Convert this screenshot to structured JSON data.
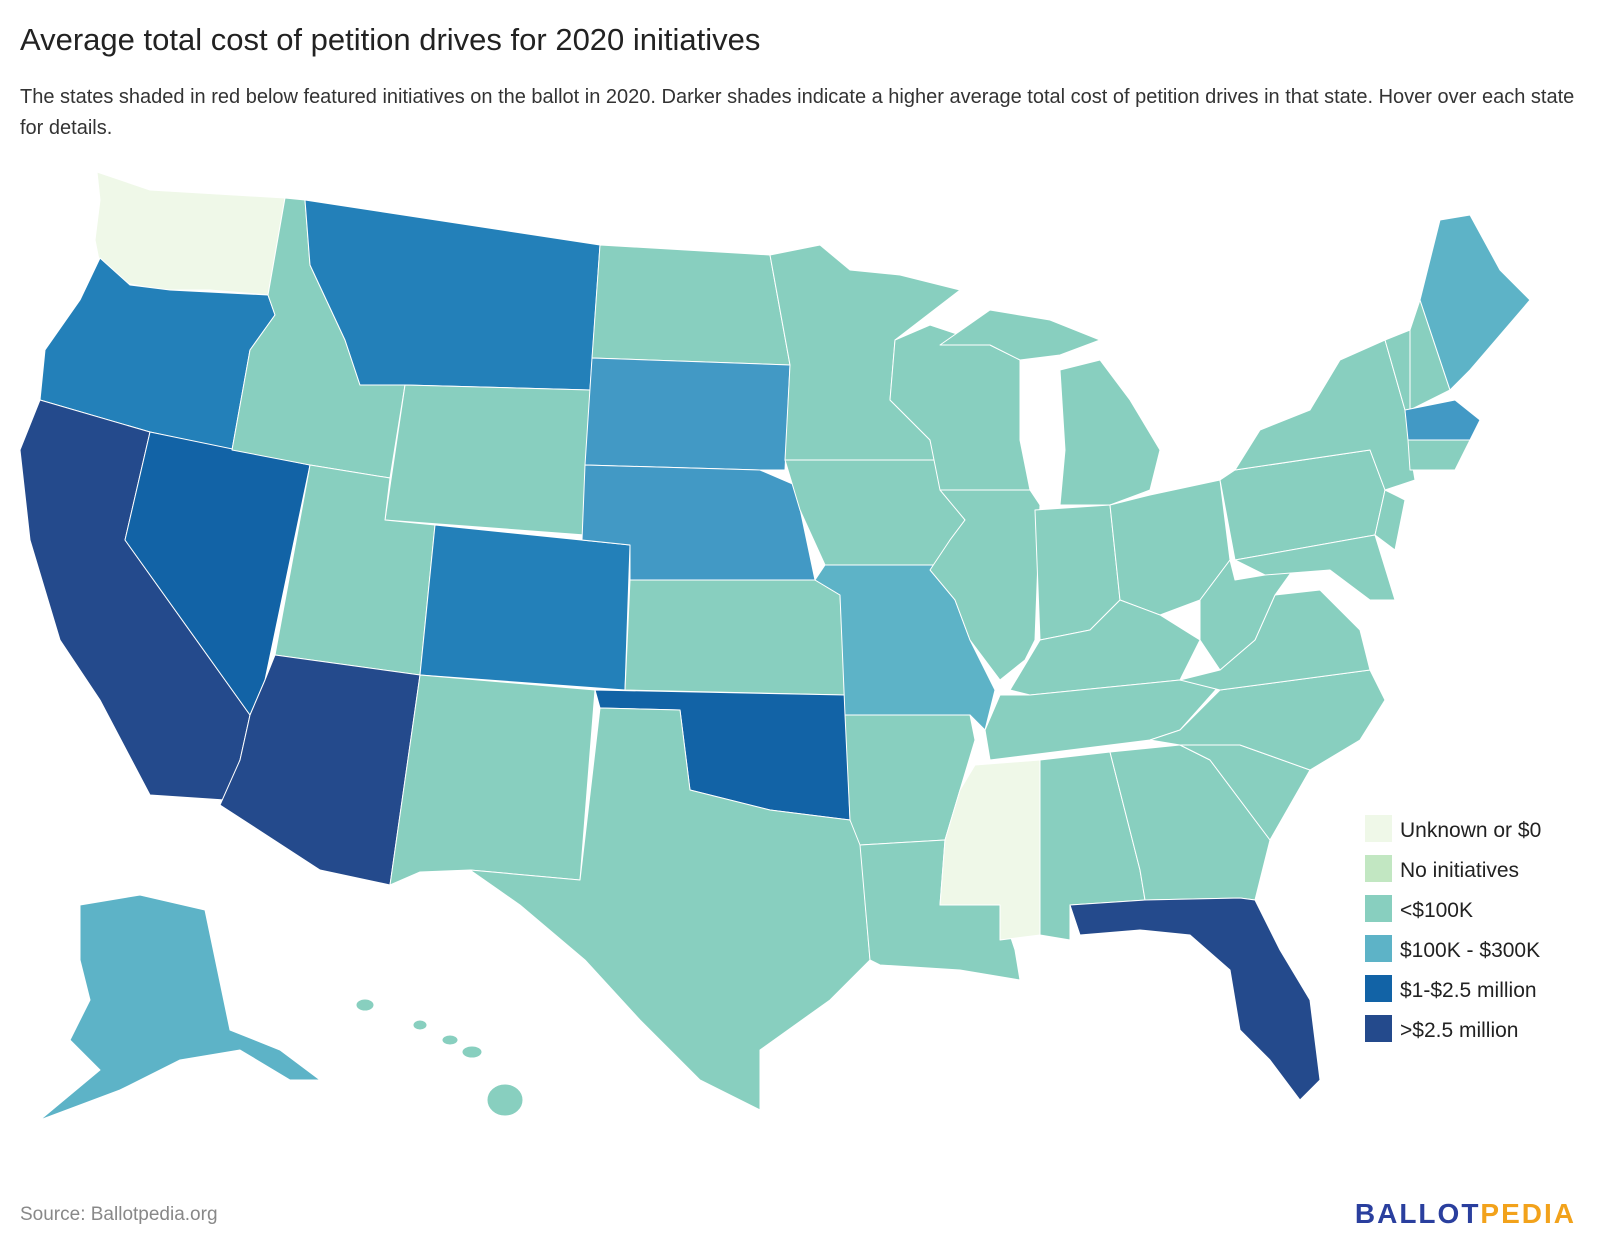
{
  "header": {
    "title": "Average total cost of petition drives for 2020 initiatives",
    "subtitle": "The states shaded in red below featured initiatives on the ballot in 2020. Darker shades indicate a higher average total cost of petition drives in that state. Hover over each state for details."
  },
  "colors": {
    "unknown": "#eff8e8",
    "none": "#c2e7c2",
    "lt100k": "#88cfbf",
    "k100_300": "#5db3c7",
    "mid": "#2380b9",
    "m1_25": "#1263a6",
    "gt25": "#244a8c",
    "sd_ne": "#4299c5"
  },
  "legend": [
    {
      "key": "unknown",
      "label": "Unknown or $0"
    },
    {
      "key": "none",
      "label": "No initiatives"
    },
    {
      "key": "lt100k",
      "label": "<$100K"
    },
    {
      "key": "k100_300",
      "label": "$100K - $300K"
    },
    {
      "key": "m1_25",
      "label": "$1-$2.5 million"
    },
    {
      "key": "gt25",
      "label": ">$2.5 million"
    }
  ],
  "footer": {
    "source": "Source: Ballotpedia.org",
    "logo_a": "BALLOT",
    "logo_b": "PEDIA"
  }
}
